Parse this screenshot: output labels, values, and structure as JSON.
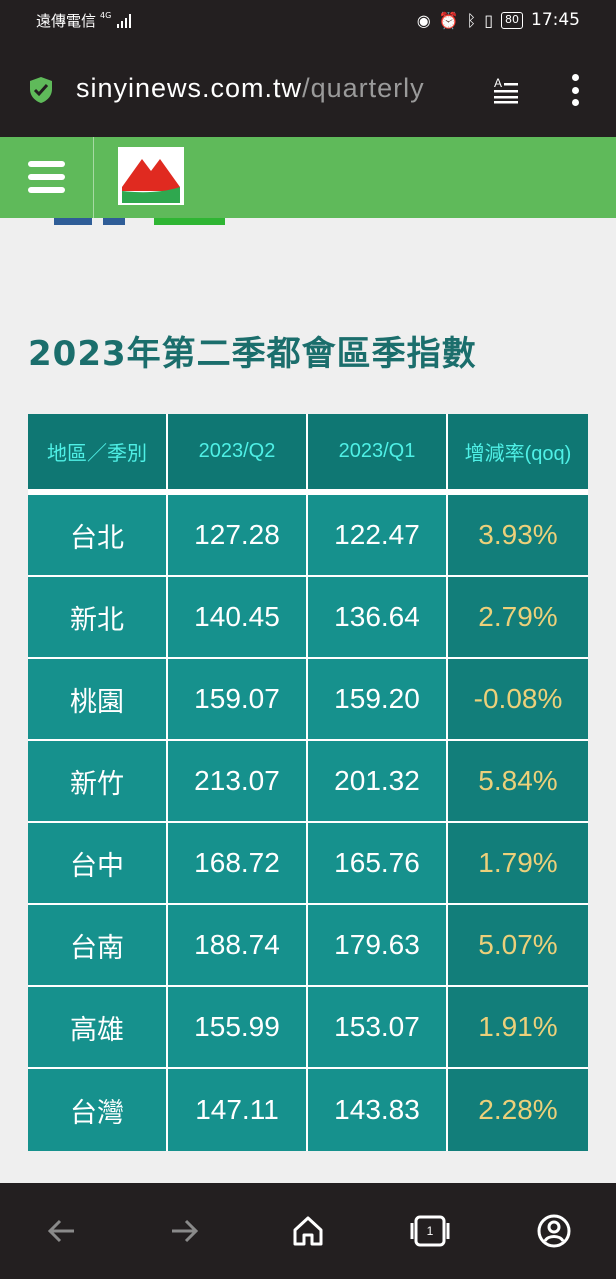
{
  "status_bar": {
    "carrier": "遠傳電信",
    "network": "4G",
    "battery": "80",
    "time": "17:45"
  },
  "browser": {
    "url_domain": "sinyinews.com.tw",
    "url_path": "/quarterly"
  },
  "page": {
    "title": "2023年第二季都會區季指數"
  },
  "table": {
    "headers": [
      "地區／季別",
      "2023/Q2",
      "2023/Q1",
      "增減率(qoq)"
    ],
    "rows": [
      {
        "region": "台北",
        "q2": "127.28",
        "q1": "122.47",
        "qoq": "3.93%"
      },
      {
        "region": "新北",
        "q2": "140.45",
        "q1": "136.64",
        "qoq": "2.79%"
      },
      {
        "region": "桃園",
        "q2": "159.07",
        "q1": "159.20",
        "qoq": "-0.08%"
      },
      {
        "region": "新竹",
        "q2": "213.07",
        "q1": "201.32",
        "qoq": "5.84%"
      },
      {
        "region": "台中",
        "q2": "168.72",
        "q1": "165.76",
        "qoq": "1.79%"
      },
      {
        "region": "台南",
        "q2": "188.74",
        "q1": "179.63",
        "qoq": "5.07%"
      },
      {
        "region": "高雄",
        "q2": "155.99",
        "q1": "153.07",
        "qoq": "1.91%"
      },
      {
        "region": "台灣",
        "q2": "147.11",
        "q1": "143.83",
        "qoq": "2.28%"
      }
    ]
  },
  "bottom_nav": {
    "tab_count": "1"
  },
  "colors": {
    "header_green": "#5fba5a",
    "title_teal": "#1b6e6c",
    "table_header_bg": "#0f7773",
    "table_header_text": "#4ff0e6",
    "table_cell_bg": "#16918d",
    "qoq_text": "#ecd07a"
  }
}
